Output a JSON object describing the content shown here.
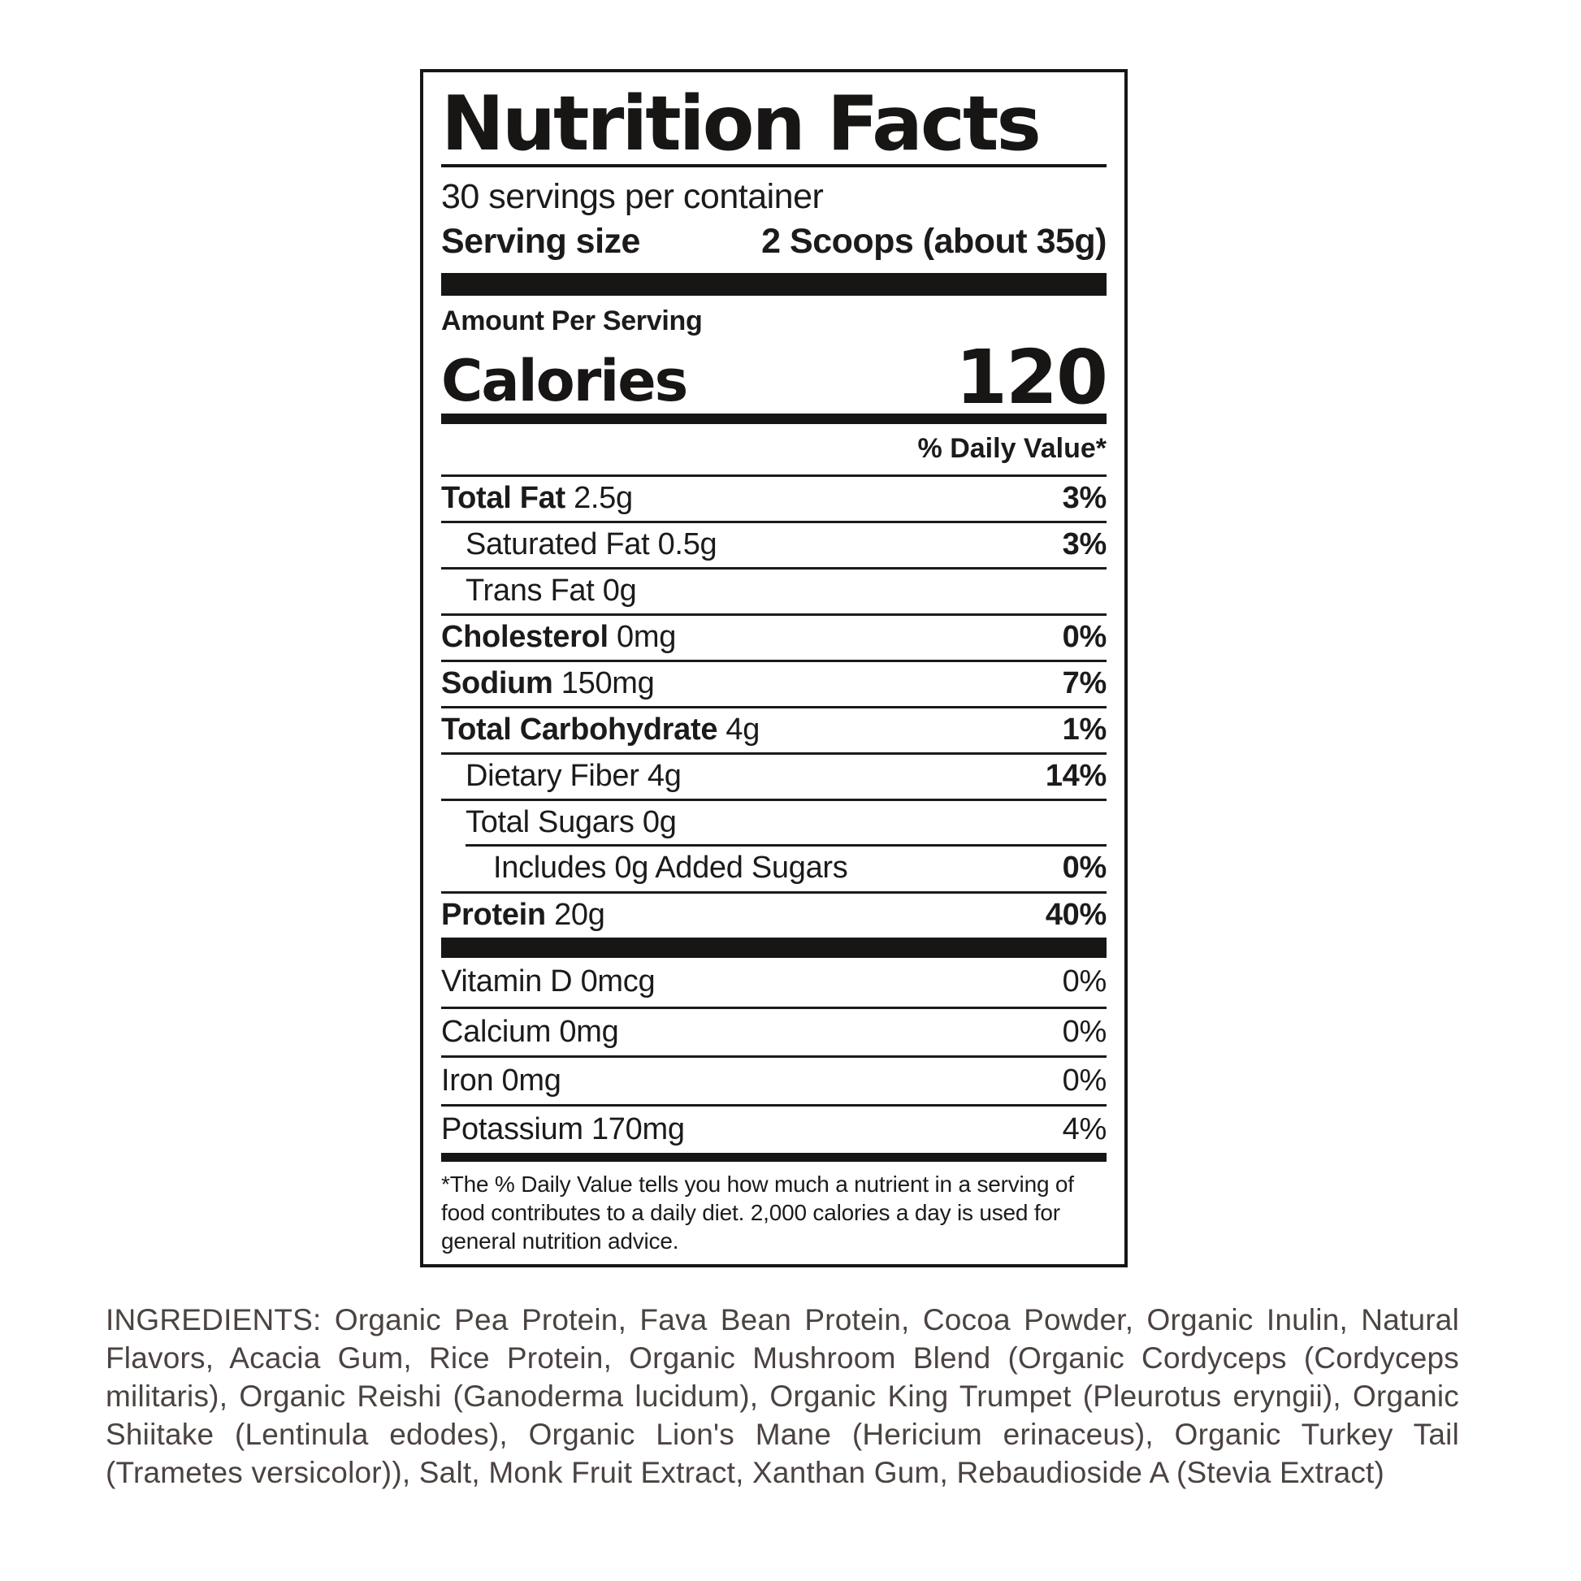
{
  "label": {
    "title": "Nutrition Facts",
    "servings_per_container": "30 servings per container",
    "serving_size_label": "Serving size",
    "serving_size_value": "2 Scoops (about 35g)",
    "amount_per_serving": "Amount Per Serving",
    "calories_label": "Calories",
    "calories_value": "120",
    "daily_value_header": "% Daily Value*",
    "footnote": "*The % Daily Value tells you how much a nutrient in a serving of food contributes to a daily diet. 2,000 calories a day is used for general nutrition advice."
  },
  "nutrient_rows": [
    {
      "bold": "Total Fat",
      "rest": " 2.5g",
      "dv": "3%",
      "indent": 0,
      "dv_bold": true
    },
    {
      "bold": "",
      "rest": "Saturated Fat 0.5g",
      "dv": "3%",
      "indent": 1,
      "dv_bold": true
    },
    {
      "bold": "",
      "rest": "Trans Fat 0g",
      "dv": "",
      "indent": 1,
      "dv_bold": false
    },
    {
      "bold": "Cholesterol",
      "rest": " 0mg",
      "dv": "0%",
      "indent": 0,
      "dv_bold": true
    },
    {
      "bold": "Sodium",
      "rest": " 150mg",
      "dv": "7%",
      "indent": 0,
      "dv_bold": true
    },
    {
      "bold": "Total Carbohydrate",
      "rest": " 4g",
      "dv": "1%",
      "indent": 0,
      "dv_bold": true
    },
    {
      "bold": "",
      "rest": "Dietary Fiber 4g",
      "dv": "14%",
      "indent": 1,
      "dv_bold": true
    },
    {
      "bold": "",
      "rest": "Total Sugars 0g",
      "dv": "",
      "indent": 1,
      "dv_bold": false
    },
    {
      "bold": "",
      "rest": "Includes 0g Added Sugars",
      "dv": "0%",
      "indent": 2,
      "dv_bold": true,
      "line": "indented"
    },
    {
      "bold": "Protein",
      "rest": " 20g",
      "dv": "40%",
      "indent": 0,
      "dv_bold": true
    }
  ],
  "vitamin_rows": [
    {
      "rest": "Vitamin D 0mcg",
      "dv": "0%"
    },
    {
      "rest": "Calcium 0mg",
      "dv": "0%"
    },
    {
      "rest": "Iron 0mg",
      "dv": "0%"
    },
    {
      "rest": "Potassium 170mg",
      "dv": "4%"
    }
  ],
  "ingredients_text": "INGREDIENTS: Organic Pea Protein, Fava Bean Protein, Cocoa Powder, Organic Inulin, Natural Flavors, Acacia Gum, Rice Protein, Organic Mushroom Blend (Organic Cordyceps (Cordyceps militaris), Organic Reishi (Ganoderma lucidum), Organic King Trumpet (Pleurotus eryngii), Organic Shiitake (Lentinula edodes), Organic Lion's Mane (Hericium erinaceus), Organic Turkey Tail (Trametes versicolor)), Salt, Monk Fruit Extract, Xanthan Gum, Rebaudioside A (Stevia Extract)",
  "colors": {
    "label_text": "#1d1a1a",
    "panel_border": "#181515",
    "ingredients_text": "#4b4341",
    "background": "#ffffff"
  }
}
